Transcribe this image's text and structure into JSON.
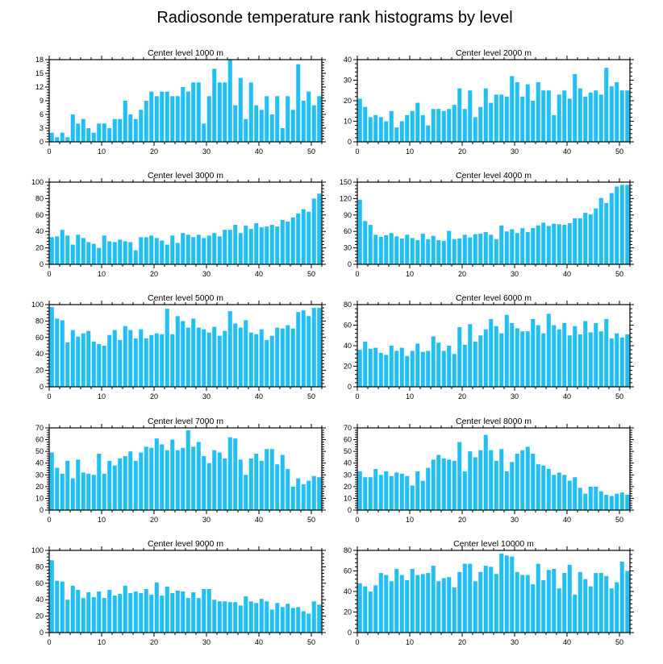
{
  "title": "Radiosonde temperature rank histograms by level",
  "colors": {
    "bar": "#22c0f2",
    "axis": "#000000",
    "background": "#ffffff"
  },
  "chart_data": [
    {
      "type": "bar",
      "title": "Center level 1000 m",
      "xlim": [
        0,
        52
      ],
      "ylim": [
        0,
        18
      ],
      "yticks": [
        0,
        3,
        6,
        9,
        12,
        15,
        18
      ],
      "xticks": [
        0,
        10,
        20,
        30,
        40,
        50
      ],
      "values": [
        2,
        1,
        2,
        1,
        6,
        4,
        5,
        3,
        2,
        4,
        4,
        3,
        5,
        5,
        9,
        6,
        5,
        7,
        9,
        11,
        10,
        11,
        11,
        10,
        10,
        12,
        11,
        13,
        13,
        4,
        10,
        16,
        13,
        13,
        18,
        8,
        14,
        5,
        13,
        8,
        7,
        10,
        6,
        10,
        3,
        10,
        7,
        17,
        9,
        11,
        8,
        10
      ]
    },
    {
      "type": "bar",
      "title": "Center level 2000 m",
      "xlim": [
        0,
        52
      ],
      "ylim": [
        0,
        40
      ],
      "yticks": [
        0,
        10,
        20,
        30,
        40
      ],
      "xticks": [
        0,
        10,
        20,
        30,
        40,
        50
      ],
      "values": [
        21,
        17,
        12,
        13,
        12,
        10,
        15,
        7,
        10,
        13,
        15,
        19,
        13,
        8,
        16,
        16,
        15,
        16,
        18,
        26,
        16,
        25,
        12,
        17,
        26,
        19,
        23,
        23,
        22,
        32,
        29,
        22,
        28,
        20,
        29,
        25,
        25,
        13,
        23,
        25,
        21,
        33,
        26,
        22,
        24,
        25,
        23,
        36,
        27,
        29,
        25,
        25
      ]
    },
    {
      "type": "bar",
      "title": "Center level 3000 m",
      "xlim": [
        0,
        52
      ],
      "ylim": [
        0,
        100
      ],
      "yticks": [
        0,
        20,
        40,
        60,
        80,
        100
      ],
      "xticks": [
        0,
        10,
        20,
        30,
        40,
        50
      ],
      "values": [
        33,
        34,
        42,
        35,
        24,
        36,
        32,
        27,
        25,
        20,
        35,
        28,
        27,
        30,
        28,
        27,
        17,
        33,
        33,
        35,
        32,
        29,
        24,
        35,
        26,
        38,
        36,
        33,
        36,
        32,
        35,
        38,
        34,
        42,
        42,
        48,
        38,
        47,
        43,
        50,
        45,
        46,
        48,
        46,
        54,
        52,
        57,
        62,
        67,
        64,
        80,
        86
      ]
    },
    {
      "type": "bar",
      "title": "Center level 4000 m",
      "xlim": [
        0,
        52
      ],
      "ylim": [
        0,
        150
      ],
      "yticks": [
        0,
        30,
        60,
        90,
        120,
        150
      ],
      "xticks": [
        0,
        10,
        20,
        30,
        40,
        50
      ],
      "values": [
        118,
        79,
        72,
        54,
        50,
        53,
        57,
        51,
        47,
        54,
        48,
        44,
        56,
        46,
        52,
        44,
        43,
        61,
        46,
        47,
        54,
        49,
        55,
        56,
        59,
        54,
        46,
        71,
        60,
        64,
        57,
        66,
        59,
        66,
        71,
        76,
        70,
        74,
        73,
        72,
        75,
        84,
        84,
        94,
        91,
        102,
        121,
        112,
        130,
        142,
        145,
        145
      ]
    },
    {
      "type": "bar",
      "title": "Center level 5000 m",
      "xlim": [
        0,
        52
      ],
      "ylim": [
        0,
        100
      ],
      "yticks": [
        0,
        20,
        40,
        60,
        80,
        100
      ],
      "xticks": [
        0,
        10,
        20,
        30,
        40,
        50
      ],
      "values": [
        97,
        83,
        81,
        54,
        69,
        61,
        65,
        68,
        55,
        52,
        50,
        63,
        69,
        57,
        74,
        69,
        59,
        70,
        59,
        63,
        65,
        64,
        95,
        64,
        86,
        80,
        72,
        83,
        72,
        70,
        66,
        73,
        62,
        68,
        92,
        77,
        72,
        81,
        66,
        64,
        70,
        57,
        62,
        72,
        71,
        75,
        71,
        91,
        93,
        86,
        96,
        96
      ]
    },
    {
      "type": "bar",
      "title": "Center level 6000 m",
      "xlim": [
        0,
        52
      ],
      "ylim": [
        0,
        80
      ],
      "yticks": [
        0,
        20,
        40,
        60,
        80
      ],
      "xticks": [
        0,
        10,
        20,
        30,
        40,
        50
      ],
      "values": [
        36,
        44,
        37,
        38,
        33,
        31,
        40,
        35,
        38,
        30,
        35,
        42,
        34,
        35,
        49,
        43,
        35,
        40,
        32,
        58,
        41,
        61,
        44,
        50,
        56,
        66,
        59,
        52,
        70,
        62,
        57,
        54,
        54,
        66,
        60,
        52,
        71,
        60,
        56,
        62,
        50,
        59,
        51,
        64,
        53,
        62,
        54,
        66,
        47,
        52,
        48,
        51
      ]
    },
    {
      "type": "bar",
      "title": "Center level 7000 m",
      "xlim": [
        0,
        52
      ],
      "ylim": [
        0,
        70
      ],
      "yticks": [
        0,
        10,
        20,
        30,
        40,
        50,
        60,
        70
      ],
      "xticks": [
        0,
        10,
        20,
        30,
        40,
        50
      ],
      "values": [
        49,
        36,
        31,
        42,
        27,
        43,
        32,
        31,
        30,
        48,
        31,
        42,
        38,
        44,
        46,
        50,
        42,
        49,
        54,
        53,
        61,
        56,
        51,
        60,
        51,
        53,
        68,
        54,
        58,
        46,
        40,
        51,
        49,
        44,
        62,
        61,
        43,
        30,
        44,
        48,
        42,
        52,
        52,
        39,
        47,
        35,
        20,
        27,
        22,
        25,
        29,
        28
      ]
    },
    {
      "type": "bar",
      "title": "Center level 8000 m",
      "xlim": [
        0,
        52
      ],
      "ylim": [
        0,
        70
      ],
      "yticks": [
        0,
        10,
        20,
        30,
        40,
        50,
        60,
        70
      ],
      "xticks": [
        0,
        10,
        20,
        30,
        40,
        50
      ],
      "values": [
        33,
        28,
        28,
        35,
        30,
        33,
        29,
        32,
        31,
        29,
        21,
        33,
        25,
        36,
        43,
        47,
        44,
        43,
        42,
        58,
        33,
        50,
        45,
        51,
        64,
        51,
        42,
        52,
        33,
        41,
        48,
        51,
        54,
        48,
        39,
        38,
        35,
        30,
        32,
        30,
        25,
        28,
        19,
        14,
        20,
        20,
        16,
        13,
        12,
        14,
        15,
        13
      ]
    },
    {
      "type": "bar",
      "title": "Center level 9000 m",
      "xlim": [
        0,
        52
      ],
      "ylim": [
        0,
        100
      ],
      "yticks": [
        0,
        20,
        40,
        60,
        80,
        100
      ],
      "xticks": [
        0,
        10,
        20,
        30,
        40,
        50
      ],
      "values": [
        88,
        63,
        62,
        40,
        57,
        52,
        42,
        49,
        43,
        50,
        42,
        52,
        45,
        47,
        57,
        48,
        50,
        48,
        53,
        46,
        61,
        45,
        56,
        48,
        51,
        50,
        42,
        49,
        42,
        53,
        53,
        40,
        38,
        38,
        37,
        37,
        33,
        44,
        38,
        36,
        41,
        38,
        28,
        36,
        31,
        35,
        30,
        31,
        26,
        23,
        38,
        34
      ]
    },
    {
      "type": "bar",
      "title": "Center level 10000 m",
      "xlim": [
        0,
        52
      ],
      "ylim": [
        0,
        80
      ],
      "yticks": [
        0,
        20,
        40,
        60,
        80
      ],
      "xticks": [
        0,
        10,
        20,
        30,
        40,
        50
      ],
      "values": [
        48,
        45,
        40,
        46,
        58,
        56,
        50,
        62,
        56,
        51,
        62,
        56,
        57,
        58,
        65,
        50,
        53,
        54,
        44,
        59,
        67,
        67,
        50,
        59,
        65,
        64,
        57,
        77,
        75,
        74,
        59,
        56,
        56,
        47,
        67,
        51,
        61,
        62,
        43,
        58,
        66,
        37,
        59,
        52,
        45,
        58,
        58,
        55,
        43,
        49,
        69,
        60,
        64
      ]
    }
  ]
}
